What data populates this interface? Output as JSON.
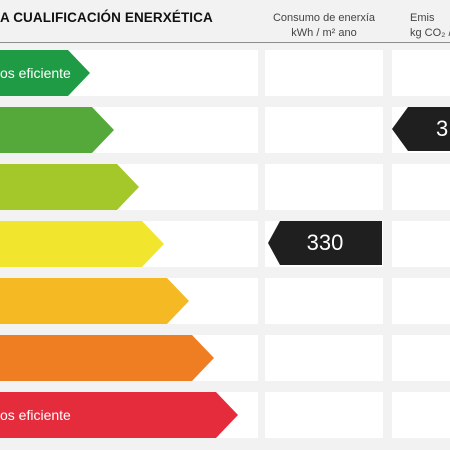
{
  "header": {
    "title": "A CUALIFICACIÓN ENERXÉTICA",
    "consumo_line1": "Consumo de enerxía",
    "consumo_line2": "kWh / m² ano",
    "emisions_line1": "Emis",
    "emisions_line2": "kg CO₂ /"
  },
  "bands": [
    {
      "label": "os eficiente",
      "color": "#1f9a45"
    },
    {
      "label": "",
      "color": "#55a83a"
    },
    {
      "label": "",
      "color": "#a4c72a"
    },
    {
      "label": "",
      "color": "#f2e52e"
    },
    {
      "label": "",
      "color": "#f5b923"
    },
    {
      "label": "",
      "color": "#ef7d22"
    },
    {
      "label": "os eficiente",
      "color": "#e42c3c"
    }
  ],
  "consumo_marker": {
    "value": "330",
    "row": 4
  },
  "emisions_marker": {
    "value": "3",
    "row": 2
  }
}
